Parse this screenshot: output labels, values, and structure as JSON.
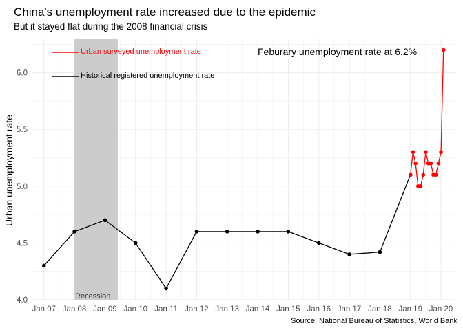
{
  "chart_data": {
    "type": "line",
    "title": "China's unemployment rate increased due to the epidemic",
    "subtitle": "But it stayed flat during the 2008 financial crisis",
    "ylabel": "Urban unemployment rate",
    "xlabel": "",
    "caption": "Source: National Bureau of Statistics, World Bank",
    "annotation": "Feburary unemployment rate at 6.2%",
    "recession_label": "Recession",
    "recession": {
      "start": 2008.0,
      "end": 2009.42
    },
    "ylim": [
      4.0,
      6.3
    ],
    "xlim": [
      2006.6,
      2020.45
    ],
    "yticks": [
      4.0,
      4.5,
      5.0,
      5.5,
      6.0
    ],
    "ytick_labels": [
      "4.0",
      "4.5",
      "5.0",
      "5.5",
      "6.0"
    ],
    "xticks": [
      2007,
      2008,
      2009,
      2010,
      2011,
      2012,
      2013,
      2014,
      2015,
      2016,
      2017,
      2018,
      2019,
      2020
    ],
    "xtick_labels": [
      "Jan 07",
      "Jan 08",
      "Jan 09",
      "Jan 10",
      "Jan 11",
      "Jan 12",
      "Jan 13",
      "Jan 14",
      "Jan 15",
      "Jan 16",
      "Jan 17",
      "Jan 18",
      "Jan 19",
      "Jan 20"
    ],
    "grid": true,
    "legend_position": "top-left",
    "series": [
      {
        "name": "Historical registered unemployment rate",
        "color": "#000000",
        "x": [
          2007,
          2008,
          2009,
          2010,
          2011,
          2012,
          2013,
          2014,
          2015,
          2016,
          2017,
          2018,
          2019
        ],
        "y": [
          4.3,
          4.6,
          4.7,
          4.5,
          4.1,
          4.6,
          4.6,
          4.6,
          4.6,
          4.5,
          4.4,
          4.42,
          5.1
        ]
      },
      {
        "name": "Urban surveyed unemployment rate",
        "color": "#ff0000",
        "x": [
          2019.0,
          2019.083,
          2019.167,
          2019.25,
          2019.333,
          2019.417,
          2019.5,
          2019.583,
          2019.667,
          2019.75,
          2019.833,
          2019.917,
          2020.0,
          2020.083
        ],
        "y": [
          5.1,
          5.3,
          5.2,
          5.0,
          5.0,
          5.1,
          5.3,
          5.2,
          5.2,
          5.1,
          5.1,
          5.2,
          5.3,
          6.2
        ]
      }
    ]
  }
}
